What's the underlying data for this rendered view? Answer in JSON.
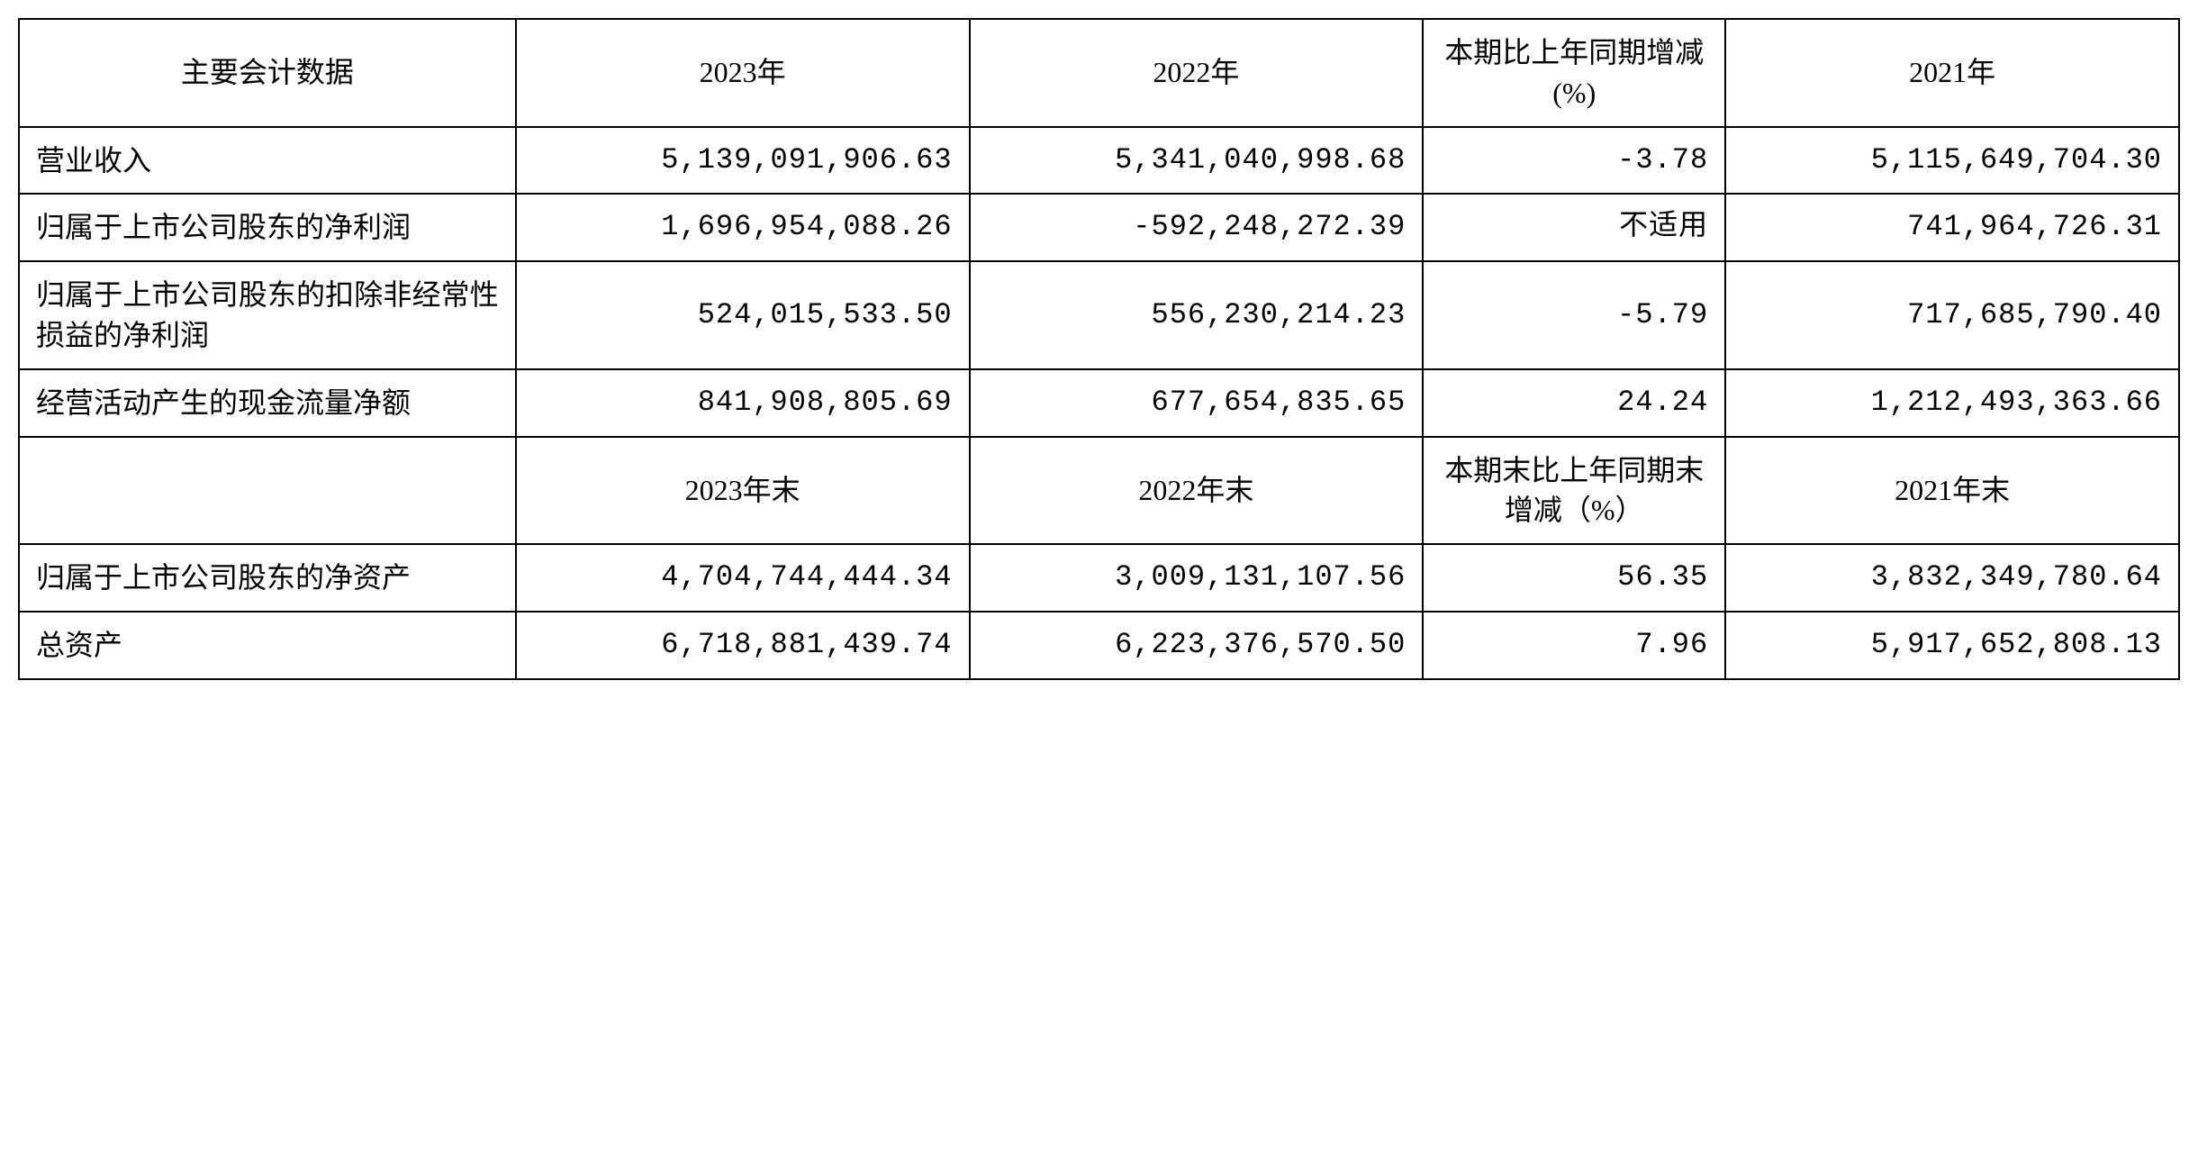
{
  "table": {
    "header1": {
      "h1": "主要会计数据",
      "h2": "2023年",
      "h3": "2022年",
      "h4": "本期比上年同期增减(%)",
      "h5": "2021年"
    },
    "rows1": [
      {
        "label": "营业收入",
        "y2023": "5,139,091,906.63",
        "y2022": "5,341,040,998.68",
        "change": "-3.78",
        "y2021": "5,115,649,704.30"
      },
      {
        "label": "归属于上市公司股东的净利润",
        "y2023": "1,696,954,088.26",
        "y2022": "-592,248,272.39",
        "change": "不适用",
        "y2021": "741,964,726.31"
      },
      {
        "label": "归属于上市公司股东的扣除非经常性损益的净利润",
        "y2023": "524,015,533.50",
        "y2022": "556,230,214.23",
        "change": "-5.79",
        "y2021": "717,685,790.40"
      },
      {
        "label": "经营活动产生的现金流量净额",
        "y2023": "841,908,805.69",
        "y2022": "677,654,835.65",
        "change": "24.24",
        "y2021": "1,212,493,363.66"
      }
    ],
    "header2": {
      "h1": "",
      "h2": "2023年末",
      "h3": "2022年末",
      "h4": "本期末比上年同期末增减（%）",
      "h5": "2021年末"
    },
    "rows2": [
      {
        "label": "归属于上市公司股东的净资产",
        "y2023": "4,704,744,444.34",
        "y2022": "3,009,131,107.56",
        "change": "56.35",
        "y2021": "3,832,349,780.64"
      },
      {
        "label": "总资产",
        "y2023": "6,718,881,439.74",
        "y2022": "6,223,376,570.50",
        "change": "7.96",
        "y2021": "5,917,652,808.13"
      }
    ],
    "styling": {
      "border_color": "#000000",
      "border_width": 2,
      "background_color": "#ffffff",
      "text_color": "#000000",
      "font_size": 32,
      "font_family": "SimSun",
      "number_font_family": "Courier New",
      "column_widths_percent": [
        23,
        21,
        21,
        14,
        21
      ]
    }
  }
}
